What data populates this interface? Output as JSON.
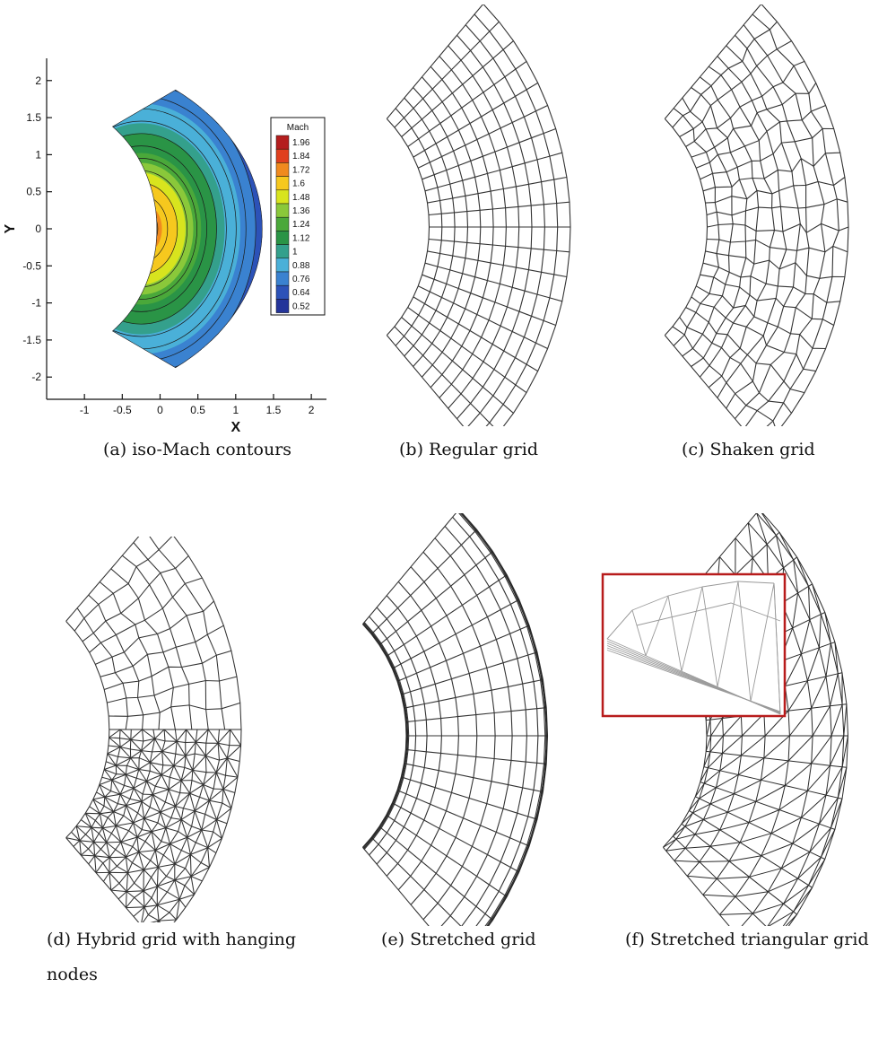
{
  "figure": {
    "panels": [
      {
        "id": "a",
        "caption": "(a) iso-Mach contours",
        "kind": "contour"
      },
      {
        "id": "b",
        "caption": "(b) Regular grid",
        "kind": "regular"
      },
      {
        "id": "c",
        "caption": "(c) Shaken grid",
        "kind": "shaken"
      },
      {
        "id": "d",
        "caption": "(d) Hybrid grid with hanging",
        "caption_line2": "nodes",
        "kind": "hybrid"
      },
      {
        "id": "e",
        "caption": "(e) Stretched grid",
        "kind": "stretched"
      },
      {
        "id": "f",
        "caption": "(f) Stretched triangular grid",
        "kind": "stretched-triangular"
      }
    ]
  },
  "chart_data": {
    "type": "heatmap",
    "title": "",
    "xlabel": "X",
    "ylabel": "Y",
    "xlim": [
      -1.5,
      2.2
    ],
    "ylim": [
      -2.3,
      2.3
    ],
    "x_ticks": [
      "-1",
      "-0.5",
      "0",
      "0.5",
      "1",
      "1.5",
      "2"
    ],
    "y_ticks": [
      "2",
      "1.5",
      "1",
      "0.5",
      "0",
      "-0.5",
      "-1",
      "-1.5",
      "-2"
    ],
    "legend": {
      "title": "Mach",
      "placement": "right",
      "levels": [
        "1.96",
        "1.84",
        "1.72",
        "1.6",
        "1.48",
        "1.36",
        "1.24",
        "1.12",
        "1",
        "0.88",
        "0.76",
        "0.64",
        "0.52"
      ],
      "colors": [
        "#b41e1e",
        "#e0401e",
        "#f08a1e",
        "#f6c81e",
        "#d8e41e",
        "#8ac83a",
        "#4aa83a",
        "#2a9446",
        "#34a08c",
        "#4ab0d8",
        "#3a82d0",
        "#2c52b8",
        "#24349a"
      ]
    },
    "contour_levels_drawn": 13
  }
}
